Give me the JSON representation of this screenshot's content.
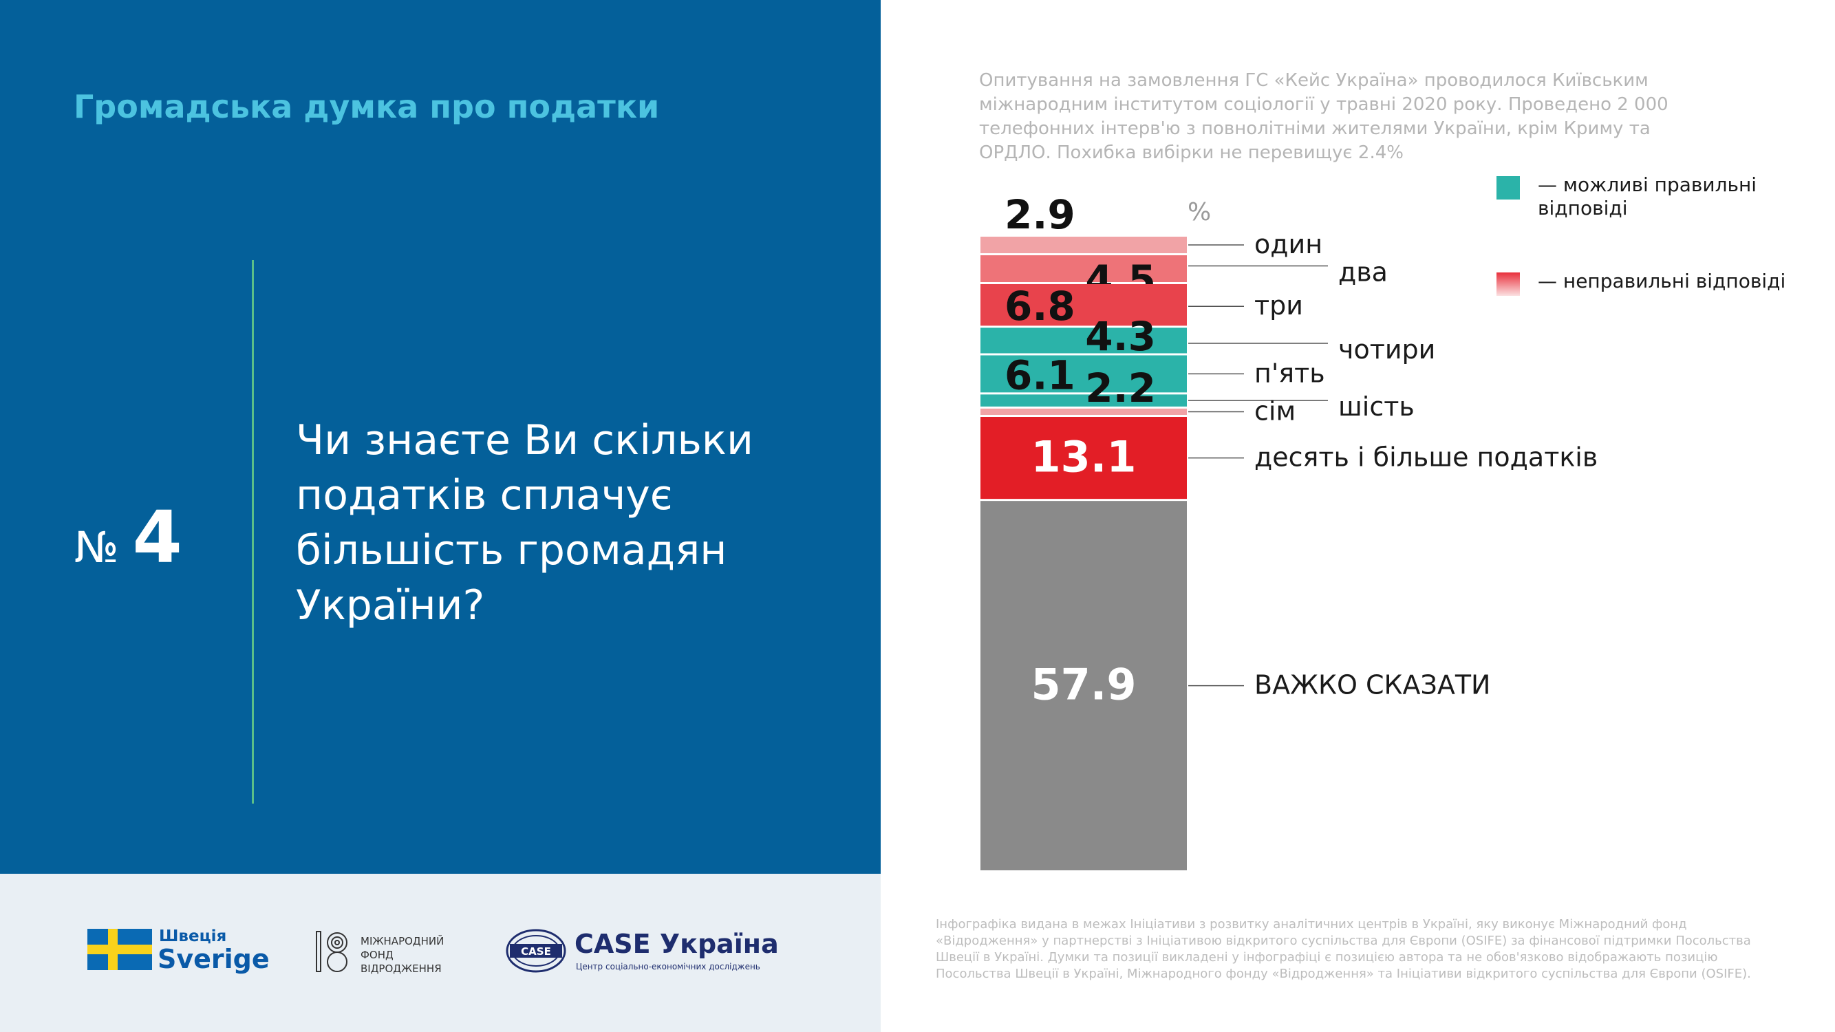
{
  "header": {
    "subtitle": "Громадська думка про податки",
    "question_symbol": "№",
    "question_number": "4",
    "question": "Чи знаєте Ви скільки податків сплачує більшість громадян України?"
  },
  "survey_note": "Опитування на замовлення ГС «Кейс Україна» проводилося Київським міжнародним інститутом соціології у травні 2020 року. Проведено 2 000 телефонних інтерв'ю з повнолітніми жителями України, крім Криму та ОРДЛО. Похибка вибірки не перевищує 2.4%",
  "legend": {
    "correct": {
      "label": "— можливі правильні відповіді",
      "color": "#2bb3a9"
    },
    "incorrect": {
      "label": "— неправильні відповіді",
      "color": "#e8303c"
    }
  },
  "chart_data": {
    "type": "bar",
    "stacked": true,
    "unit": "%",
    "categories": [
      "один",
      "два",
      "три",
      "чотири",
      "п'ять",
      "шість",
      "сім",
      "десять і більше податків",
      "ВАЖКО СКАЗАТИ"
    ],
    "values": [
      2.9,
      4.5,
      6.8,
      4.3,
      6.1,
      2.2,
      1.3,
      13.1,
      57.9
    ],
    "value_labels": [
      "2.9",
      "4.5",
      "6.8",
      "4.3",
      "6.1",
      "2.2",
      "",
      "13.1",
      "57.9"
    ],
    "colors": [
      "#f1a3a6",
      "#ee7378",
      "#e8434c",
      "#2bb3a9",
      "#2bb3a9",
      "#2bb3a9",
      "#f1a3a6",
      "#e31e26",
      "#8a8a8a"
    ],
    "answer_type": [
      "incorrect",
      "incorrect",
      "incorrect",
      "correct",
      "correct",
      "correct",
      "incorrect",
      "incorrect",
      "neutral"
    ]
  },
  "footer": {
    "sweden_line1": "Швеція",
    "sweden_line2": "Sverige",
    "irf_line1": "МІЖНАРОДНИЙ",
    "irf_line2": "ФОНД",
    "irf_line3": "ВІДРОДЖЕННЯ",
    "case_title": "CASE Україна",
    "case_badge": "CASE",
    "case_subtitle": "Центр соціально-економічних досліджень",
    "disclaimer": "Інфографіка видана в межах Ініціативи з розвитку аналітичних центрів в Україні, яку виконує Міжнародний фонд «Відродження» у партнерстві з Ініціативою відкритого суспільства для Європи (OSIFE) за фінансової підтримки Посольства Швеції в Україні. Думки та позиції викладені у інфографіці є позицією автора та не обов'язково відображають позицію Посольства Швеції в Україні, Міжнародного фонду «Відродження» та Ініціативи відкритого суспільства для Європи (OSIFE)."
  }
}
